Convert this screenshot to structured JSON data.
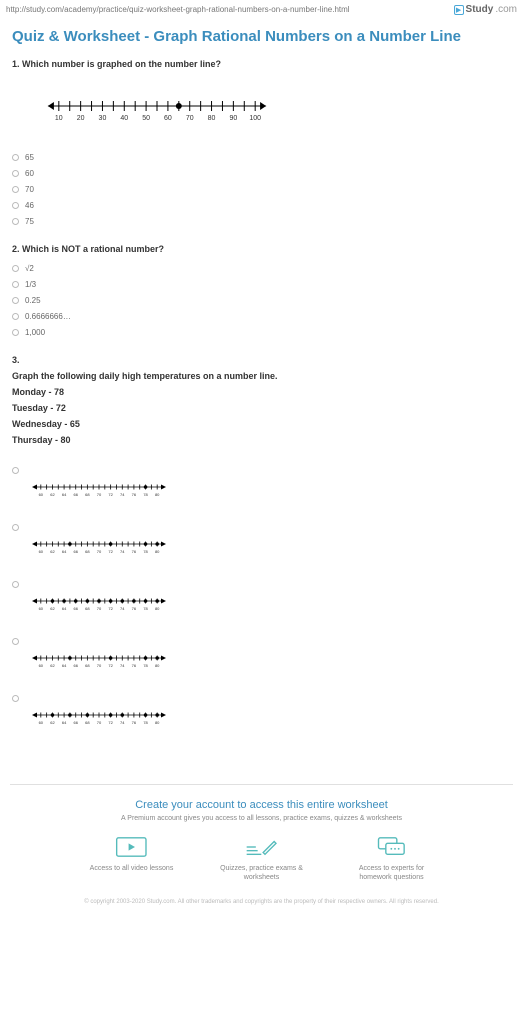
{
  "url": "http://study.com/academy/practice/quiz-worksheet-graph-rational-numbers-on-a-number-line.html",
  "logo": {
    "text": "Study",
    "suffix": ".com"
  },
  "title": "Quiz & Worksheet - Graph Rational Numbers on a Number Line",
  "q1": {
    "text": "1. Which number is graphed on the number line?",
    "numberline": {
      "ticks": [
        10,
        20,
        30,
        40,
        50,
        60,
        70,
        80,
        90,
        100
      ],
      "point_value": 65,
      "xstart": 0,
      "xend": 110,
      "line_color": "#000",
      "tick_len": 5,
      "font_size": 7
    },
    "options": [
      "65",
      "60",
      "70",
      "46",
      "75"
    ]
  },
  "q2": {
    "text": "2. Which is NOT a rational number?",
    "options": [
      "√2",
      "1/3",
      "0.25",
      "0.6666666…",
      "1,000"
    ]
  },
  "q3": {
    "num": "3.",
    "prompt": "Graph the following daily high temperatures on a number line.",
    "temps": [
      "Monday - 78",
      "Tuesday - 72",
      "Wednesday - 65",
      "Thursday - 80"
    ],
    "numberline_small": {
      "ticks": [
        60,
        62,
        64,
        66,
        68,
        70,
        72,
        74,
        76,
        78,
        80
      ],
      "line_color": "#000"
    },
    "options": [
      {
        "points": [
          78
        ]
      },
      {
        "points": [
          65,
          72,
          78,
          80
        ]
      },
      {
        "points": [
          62,
          64,
          66,
          68,
          70,
          72,
          74,
          76,
          78,
          80
        ]
      },
      {
        "points": [
          65,
          72,
          78,
          80
        ]
      },
      {
        "points": [
          62,
          65,
          68,
          72,
          74,
          78,
          80
        ]
      }
    ]
  },
  "footer": {
    "title": "Create your account to access this entire worksheet",
    "sub": "A Premium account gives you access to all lessons, practice exams, quizzes & worksheets",
    "icons": [
      {
        "label": "Access to all\nvideo lessons"
      },
      {
        "label": "Quizzes, practice exams\n& worksheets"
      },
      {
        "label": "Access to experts for\nhomework questions"
      }
    ],
    "copyright": "© copyright 2003-2020 Study.com. All other trademarks and copyrights are the property of their respective owners. All rights reserved."
  }
}
